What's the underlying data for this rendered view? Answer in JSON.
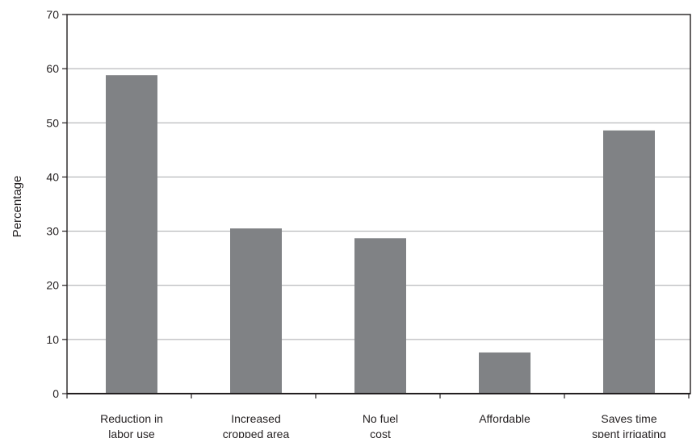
{
  "chart_data": {
    "type": "bar",
    "categories": [
      [
        "Reduction in",
        "labor use"
      ],
      [
        "Increased",
        "cropped area"
      ],
      [
        "No fuel",
        "cost"
      ],
      [
        "Affordable"
      ],
      [
        "Saves time",
        "spent irrigating"
      ]
    ],
    "values": [
      58.8,
      30.5,
      28.7,
      7.6,
      48.6
    ],
    "title": "",
    "xlabel": "",
    "ylabel": "Percentage",
    "ylim": [
      0,
      70
    ],
    "yticks": [
      0,
      10,
      20,
      30,
      40,
      50,
      60,
      70
    ],
    "grid": true,
    "legend": "none",
    "bar_color": "#808285",
    "grid_color": "#a7a9ac",
    "axis_color": "#231f20"
  }
}
